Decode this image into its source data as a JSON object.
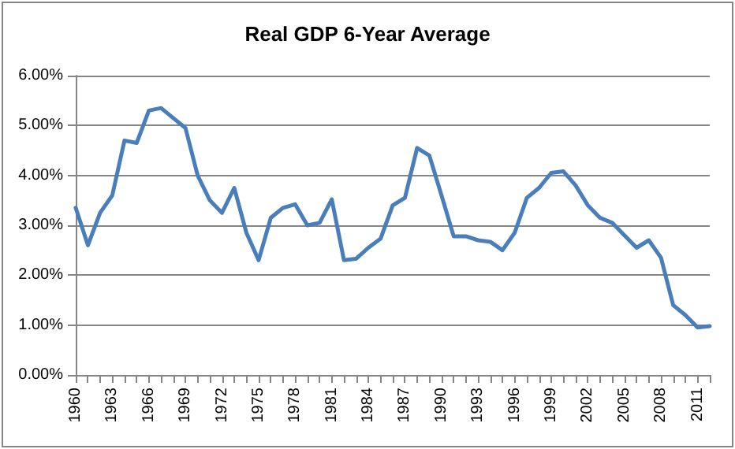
{
  "chart_data": {
    "type": "line",
    "title": "Real GDP 6-Year Average",
    "categories": [
      "1960",
      null,
      null,
      "1963",
      null,
      null,
      "1966",
      null,
      null,
      "1969",
      null,
      null,
      "1972",
      null,
      null,
      "1975",
      null,
      null,
      "1978",
      null,
      null,
      "1981",
      null,
      null,
      "1984",
      null,
      null,
      "1987",
      null,
      null,
      "1990",
      null,
      null,
      "1993",
      null,
      null,
      "1996",
      null,
      null,
      "1999",
      null,
      null,
      "2002",
      null,
      null,
      "2005",
      null,
      null,
      "2008",
      null,
      null,
      "2011",
      null
    ],
    "series": [
      {
        "color": "#4a7ebb",
        "values": [
          3.35,
          2.6,
          3.25,
          3.6,
          4.7,
          4.65,
          5.3,
          5.35,
          5.15,
          4.95,
          4.0,
          3.5,
          3.25,
          3.75,
          2.85,
          2.3,
          3.15,
          3.35,
          3.42,
          3.0,
          3.05,
          3.52,
          2.3,
          2.33,
          2.55,
          2.73,
          3.4,
          3.55,
          4.55,
          4.4,
          3.6,
          2.78,
          2.78,
          2.7,
          2.67,
          2.5,
          2.85,
          3.55,
          3.75,
          4.05,
          4.08,
          3.8,
          3.4,
          3.15,
          3.05,
          2.8,
          2.55,
          2.7,
          2.35,
          1.4,
          1.2,
          0.95,
          0.98
        ]
      }
    ],
    "ylim": [
      0,
      6
    ],
    "yticks": [
      {
        "value": 0,
        "label": "0.00%"
      },
      {
        "value": 1,
        "label": "1.00%"
      },
      {
        "value": 2,
        "label": "2.00%"
      },
      {
        "value": 3,
        "label": "3.00%"
      },
      {
        "value": 4,
        "label": "4.00%"
      },
      {
        "value": 5,
        "label": "5.00%"
      },
      {
        "value": 6,
        "label": "6.00%"
      }
    ],
    "grid": "y",
    "marker": "none",
    "line_style": "solid"
  }
}
